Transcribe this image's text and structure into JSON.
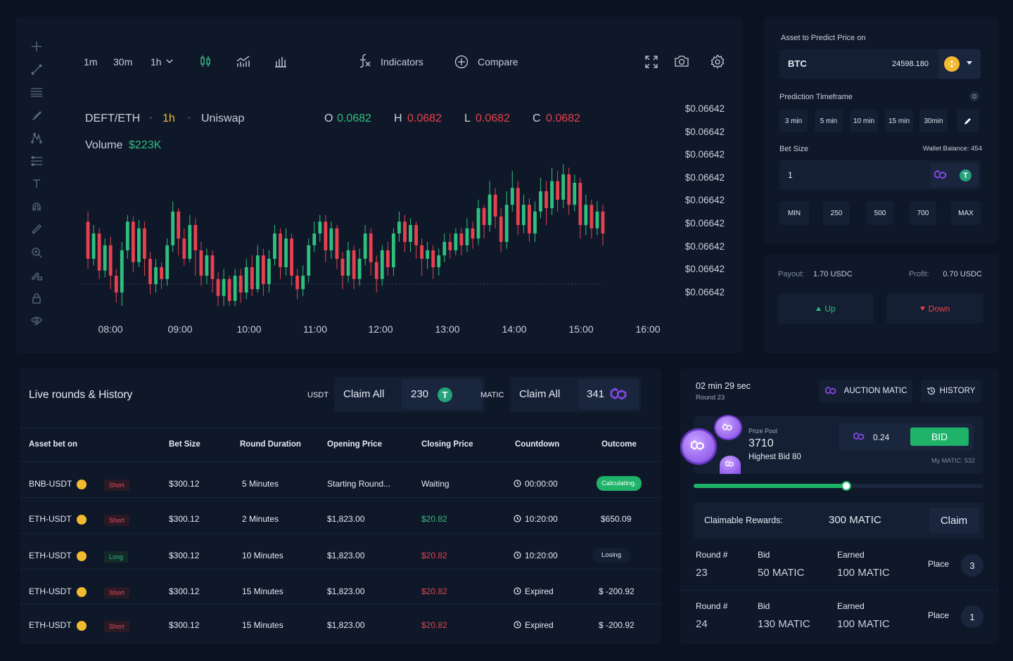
{
  "chart": {
    "timeframes": [
      "1m",
      "30m",
      "1h"
    ],
    "indicators_label": "Indicators",
    "compare_label": "Compare",
    "symbol": "DEFT/ETH",
    "interval": "1h",
    "exchange": "Uniswap",
    "ohlc": {
      "o_label": "O",
      "o": "0.0682",
      "h_label": "H",
      "h": "0.0682",
      "l_label": "L",
      "l": "0.0682",
      "c_label": "C",
      "c": "0.0682"
    },
    "volume_label": "Volume",
    "volume": "$223K",
    "y_labels": [
      "$0.06642",
      "$0.06642",
      "$0.06642",
      "$0.06642",
      "$0.06642",
      "$0.06642",
      "$0.06642",
      "$0.06642",
      "$0.06642"
    ],
    "x_labels": [
      "08:00",
      "09:00",
      "10:00",
      "11:00",
      "12:00",
      "13:00",
      "14:00",
      "15:00",
      "16:00"
    ],
    "colors": {
      "up": "#2fbf7f",
      "down": "#e5414f"
    }
  },
  "chart_data": {
    "type": "candlestick",
    "x": [
      "08:00",
      "09:00",
      "10:00",
      "11:00",
      "12:00",
      "13:00",
      "14:00",
      "15:00",
      "16:00"
    ],
    "y_labels": [
      "$0.06642",
      "$0.06642",
      "$0.06642",
      "$0.06642",
      "$0.06642",
      "$0.06642",
      "$0.06642",
      "$0.06642",
      "$0.06642"
    ],
    "volume": "$223K",
    "candles": [
      {
        "o": 0.62,
        "c": 0.4,
        "h": 0.68,
        "l": 0.34
      },
      {
        "o": 0.4,
        "c": 0.55,
        "h": 0.6,
        "l": 0.36
      },
      {
        "o": 0.55,
        "c": 0.33,
        "h": 0.58,
        "l": 0.28
      },
      {
        "o": 0.33,
        "c": 0.48,
        "h": 0.52,
        "l": 0.29
      },
      {
        "o": 0.48,
        "c": 0.3,
        "h": 0.53,
        "l": 0.22
      },
      {
        "o": 0.3,
        "c": 0.2,
        "h": 0.34,
        "l": 0.14
      },
      {
        "o": 0.2,
        "c": 0.45,
        "h": 0.5,
        "l": 0.12
      },
      {
        "o": 0.45,
        "c": 0.62,
        "h": 0.66,
        "l": 0.4
      },
      {
        "o": 0.62,
        "c": 0.38,
        "h": 0.65,
        "l": 0.32
      },
      {
        "o": 0.38,
        "c": 0.58,
        "h": 0.63,
        "l": 0.35
      },
      {
        "o": 0.58,
        "c": 0.4,
        "h": 0.62,
        "l": 0.3
      },
      {
        "o": 0.4,
        "c": 0.25,
        "h": 0.44,
        "l": 0.19
      },
      {
        "o": 0.25,
        "c": 0.35,
        "h": 0.4,
        "l": 0.2
      },
      {
        "o": 0.35,
        "c": 0.28,
        "h": 0.38,
        "l": 0.22
      },
      {
        "o": 0.28,
        "c": 0.48,
        "h": 0.52,
        "l": 0.24
      },
      {
        "o": 0.48,
        "c": 0.68,
        "h": 0.74,
        "l": 0.44
      },
      {
        "o": 0.68,
        "c": 0.52,
        "h": 0.7,
        "l": 0.42
      },
      {
        "o": 0.52,
        "c": 0.4,
        "h": 0.58,
        "l": 0.36
      },
      {
        "o": 0.4,
        "c": 0.6,
        "h": 0.66,
        "l": 0.38
      },
      {
        "o": 0.6,
        "c": 0.45,
        "h": 0.64,
        "l": 0.3
      },
      {
        "o": 0.45,
        "c": 0.3,
        "h": 0.5,
        "l": 0.24
      },
      {
        "o": 0.3,
        "c": 0.42,
        "h": 0.46,
        "l": 0.25
      },
      {
        "o": 0.42,
        "c": 0.28,
        "h": 0.45,
        "l": 0.2
      },
      {
        "o": 0.28,
        "c": 0.18,
        "h": 0.32,
        "l": 0.12
      },
      {
        "o": 0.18,
        "c": 0.28,
        "h": 0.34,
        "l": 0.12
      },
      {
        "o": 0.28,
        "c": 0.15,
        "h": 0.3,
        "l": 0.12
      },
      {
        "o": 0.15,
        "c": 0.3,
        "h": 0.34,
        "l": 0.12
      },
      {
        "o": 0.3,
        "c": 0.2,
        "h": 0.34,
        "l": 0.14
      },
      {
        "o": 0.2,
        "c": 0.35,
        "h": 0.4,
        "l": 0.16
      },
      {
        "o": 0.35,
        "c": 0.22,
        "h": 0.42,
        "l": 0.18
      },
      {
        "o": 0.22,
        "c": 0.42,
        "h": 0.48,
        "l": 0.2
      },
      {
        "o": 0.42,
        "c": 0.25,
        "h": 0.46,
        "l": 0.18
      },
      {
        "o": 0.25,
        "c": 0.4,
        "h": 0.45,
        "l": 0.2
      },
      {
        "o": 0.4,
        "c": 0.55,
        "h": 0.6,
        "l": 0.36
      },
      {
        "o": 0.55,
        "c": 0.35,
        "h": 0.58,
        "l": 0.28
      },
      {
        "o": 0.35,
        "c": 0.52,
        "h": 0.58,
        "l": 0.3
      },
      {
        "o": 0.52,
        "c": 0.3,
        "h": 0.55,
        "l": 0.24
      },
      {
        "o": 0.3,
        "c": 0.22,
        "h": 0.34,
        "l": 0.16
      },
      {
        "o": 0.22,
        "c": 0.3,
        "h": 0.36,
        "l": 0.18
      },
      {
        "o": 0.3,
        "c": 0.48,
        "h": 0.52,
        "l": 0.26
      },
      {
        "o": 0.48,
        "c": 0.55,
        "h": 0.62,
        "l": 0.44
      },
      {
        "o": 0.55,
        "c": 0.62,
        "h": 0.66,
        "l": 0.5
      },
      {
        "o": 0.62,
        "c": 0.45,
        "h": 0.66,
        "l": 0.38
      },
      {
        "o": 0.45,
        "c": 0.58,
        "h": 0.62,
        "l": 0.4
      },
      {
        "o": 0.58,
        "c": 0.4,
        "h": 0.6,
        "l": 0.34
      },
      {
        "o": 0.4,
        "c": 0.3,
        "h": 0.44,
        "l": 0.22
      },
      {
        "o": 0.3,
        "c": 0.45,
        "h": 0.5,
        "l": 0.26
      },
      {
        "o": 0.45,
        "c": 0.28,
        "h": 0.48,
        "l": 0.22
      },
      {
        "o": 0.28,
        "c": 0.4,
        "h": 0.46,
        "l": 0.24
      },
      {
        "o": 0.4,
        "c": 0.55,
        "h": 0.6,
        "l": 0.36
      },
      {
        "o": 0.55,
        "c": 0.38,
        "h": 0.58,
        "l": 0.3
      },
      {
        "o": 0.38,
        "c": 0.28,
        "h": 0.42,
        "l": 0.2
      },
      {
        "o": 0.28,
        "c": 0.45,
        "h": 0.48,
        "l": 0.24
      },
      {
        "o": 0.45,
        "c": 0.35,
        "h": 0.5,
        "l": 0.3
      },
      {
        "o": 0.35,
        "c": 0.55,
        "h": 0.58,
        "l": 0.3
      },
      {
        "o": 0.55,
        "c": 0.62,
        "h": 0.68,
        "l": 0.5
      },
      {
        "o": 0.62,
        "c": 0.5,
        "h": 0.66,
        "l": 0.44
      },
      {
        "o": 0.5,
        "c": 0.6,
        "h": 0.64,
        "l": 0.44
      },
      {
        "o": 0.6,
        "c": 0.48,
        "h": 0.62,
        "l": 0.4
      },
      {
        "o": 0.48,
        "c": 0.4,
        "h": 0.52,
        "l": 0.3
      },
      {
        "o": 0.4,
        "c": 0.45,
        "h": 0.5,
        "l": 0.34
      },
      {
        "o": 0.45,
        "c": 0.35,
        "h": 0.48,
        "l": 0.28
      },
      {
        "o": 0.35,
        "c": 0.42,
        "h": 0.46,
        "l": 0.3
      },
      {
        "o": 0.42,
        "c": 0.5,
        "h": 0.55,
        "l": 0.38
      },
      {
        "o": 0.5,
        "c": 0.45,
        "h": 0.55,
        "l": 0.4
      },
      {
        "o": 0.45,
        "c": 0.55,
        "h": 0.58,
        "l": 0.42
      },
      {
        "o": 0.55,
        "c": 0.48,
        "h": 0.58,
        "l": 0.42
      },
      {
        "o": 0.48,
        "c": 0.58,
        "h": 0.64,
        "l": 0.44
      },
      {
        "o": 0.58,
        "c": 0.52,
        "h": 0.62,
        "l": 0.46
      },
      {
        "o": 0.52,
        "c": 0.7,
        "h": 0.75,
        "l": 0.48
      },
      {
        "o": 0.7,
        "c": 0.6,
        "h": 0.72,
        "l": 0.52
      },
      {
        "o": 0.6,
        "c": 0.78,
        "h": 0.86,
        "l": 0.56
      },
      {
        "o": 0.78,
        "c": 0.65,
        "h": 0.82,
        "l": 0.58
      },
      {
        "o": 0.65,
        "c": 0.5,
        "h": 0.7,
        "l": 0.44
      },
      {
        "o": 0.5,
        "c": 0.72,
        "h": 0.8,
        "l": 0.46
      },
      {
        "o": 0.72,
        "c": 0.82,
        "h": 0.92,
        "l": 0.68
      },
      {
        "o": 0.82,
        "c": 0.6,
        "h": 0.86,
        "l": 0.54
      },
      {
        "o": 0.6,
        "c": 0.72,
        "h": 0.78,
        "l": 0.55
      },
      {
        "o": 0.72,
        "c": 0.55,
        "h": 0.76,
        "l": 0.5
      },
      {
        "o": 0.55,
        "c": 0.68,
        "h": 0.74,
        "l": 0.5
      },
      {
        "o": 0.68,
        "c": 0.8,
        "h": 0.88,
        "l": 0.64
      },
      {
        "o": 0.8,
        "c": 0.7,
        "h": 0.86,
        "l": 0.6
      },
      {
        "o": 0.7,
        "c": 0.86,
        "h": 0.94,
        "l": 0.66
      },
      {
        "o": 0.86,
        "c": 0.75,
        "h": 0.92,
        "l": 0.68
      },
      {
        "o": 0.75,
        "c": 0.9,
        "h": 0.96,
        "l": 0.7
      },
      {
        "o": 0.9,
        "c": 0.72,
        "h": 0.94,
        "l": 0.66
      },
      {
        "o": 0.72,
        "c": 0.85,
        "h": 0.9,
        "l": 0.68
      },
      {
        "o": 0.85,
        "c": 0.6,
        "h": 0.88,
        "l": 0.52
      },
      {
        "o": 0.6,
        "c": 0.72,
        "h": 0.78,
        "l": 0.54
      },
      {
        "o": 0.72,
        "c": 0.58,
        "h": 0.75,
        "l": 0.52
      },
      {
        "o": 0.58,
        "c": 0.68,
        "h": 0.74,
        "l": 0.54
      },
      {
        "o": 0.68,
        "c": 0.55,
        "h": 0.72,
        "l": 0.48
      }
    ]
  },
  "prediction": {
    "asset_label": "Asset to Predict Price on",
    "asset": "BTC",
    "asset_price": "24598.180",
    "timeframe_label": "Prediction Timeframe",
    "timeframes": [
      "3 min",
      "5 min",
      "10 min",
      "15 min",
      "30min"
    ],
    "bet_size_label": "Bet Size",
    "wallet_balance": "Wallet Balance: 454",
    "bet_value": "1",
    "presets": [
      "MIN",
      "250",
      "500",
      "700",
      "MAX"
    ],
    "payout_label": "Payout:",
    "payout": "1.70 USDC",
    "profit_label": "Profit:",
    "profit": "0.70 USDC",
    "up_label": "Up",
    "down_label": "Down"
  },
  "rounds": {
    "title": "Live rounds & History",
    "usdt_label": "USDT",
    "usdt_claim": "Claim All",
    "usdt_amount": "230",
    "matic_label": "MATIC",
    "matic_claim": "Claim All",
    "matic_amount": "341",
    "headers": [
      "Asset bet on",
      "Bet Size",
      "Round Duration",
      "Opening Price",
      "Closing Price",
      "Countdown",
      "Outcome"
    ],
    "rows": [
      {
        "asset": "BNB-USDT",
        "side": "Short",
        "bet": "$300.12",
        "duration": "5 Minutes",
        "open": "Starting Round...",
        "close": "Waiting",
        "countdown": "00:00:00",
        "outcome": "Calculating."
      },
      {
        "asset": "ETH-USDT",
        "side": "Short",
        "bet": "$300.12",
        "duration": "2 Minutes",
        "open": "$1,823.00",
        "close": "$20.82",
        "countdown": "10:20:00",
        "outcome": "$650.09"
      },
      {
        "asset": "ETH-USDT",
        "side": "Long",
        "bet": "$300.12",
        "duration": "10 Minutes",
        "open": "$1,823.00",
        "close": "$20.82",
        "countdown": "10:20:00",
        "outcome": "Losing"
      },
      {
        "asset": "ETH-USDT",
        "side": "Short",
        "bet": "$300.12",
        "duration": "15 Minutes",
        "open": "$1,823.00",
        "close": "$20.82",
        "countdown": "Expired",
        "outcome": "$ -200.92"
      },
      {
        "asset": "ETH-USDT",
        "side": "Short",
        "bet": "$300.12",
        "duration": "15 Minutes",
        "open": "$1,823.00",
        "close": "$20.82",
        "countdown": "Expired",
        "outcome": "$ -200.92"
      }
    ]
  },
  "auction": {
    "timer": "02 min 29 sec",
    "round": "Round 23",
    "auction_btn": "AUCTION MATIC",
    "history_btn": "HISTORY",
    "prize_pool_label": "Prize Pool",
    "prize_pool": "3710",
    "highest_bid": "Highest Bid 80",
    "bid_value": "0.24",
    "bid_btn": "BID",
    "my_matic": "My MATIC: 532",
    "slider_level": 0.62,
    "claimable_label": "Claimable Rewards:",
    "claimable_value": "300 MATIC",
    "claim_btn": "Claim",
    "history": [
      {
        "round_label": "Round #",
        "round": "23",
        "bid_label": "Bid",
        "bid": "50 MATIC",
        "earned_label": "Earned",
        "earned": "100 MATIC",
        "place_label": "Place",
        "place": "3"
      },
      {
        "round_label": "Round #",
        "round": "24",
        "bid_label": "Bid",
        "bid": "130 MATIC",
        "earned_label": "Earned",
        "earned": "100 MATIC",
        "place_label": "Place",
        "place": "1"
      }
    ]
  }
}
